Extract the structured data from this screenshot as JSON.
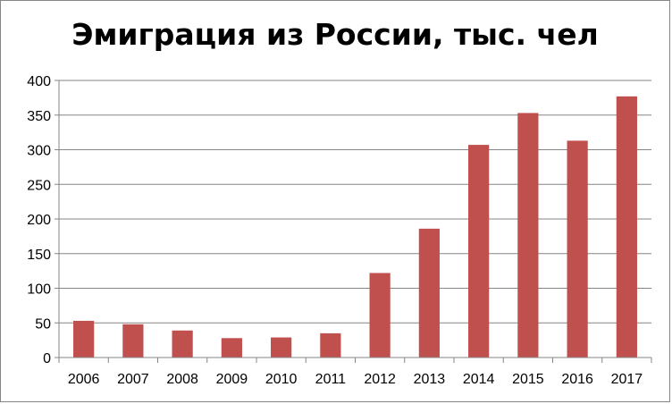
{
  "chart_data": {
    "type": "bar",
    "title": "Эмиграция из России, тыс. чел",
    "xlabel": "",
    "ylabel": "",
    "categories": [
      "2006",
      "2007",
      "2008",
      "2009",
      "2010",
      "2011",
      "2012",
      "2013",
      "2014",
      "2015",
      "2016",
      "2017"
    ],
    "series": [
      {
        "values": [
          53,
          48,
          39,
          28,
          29,
          35,
          122,
          186,
          307,
          353,
          313,
          377
        ],
        "color": "#c0504d"
      }
    ],
    "ylim": [
      0,
      400
    ],
    "yticks": [
      0,
      50,
      100,
      150,
      200,
      250,
      300,
      350,
      400
    ],
    "grid": true,
    "legend": "none"
  }
}
